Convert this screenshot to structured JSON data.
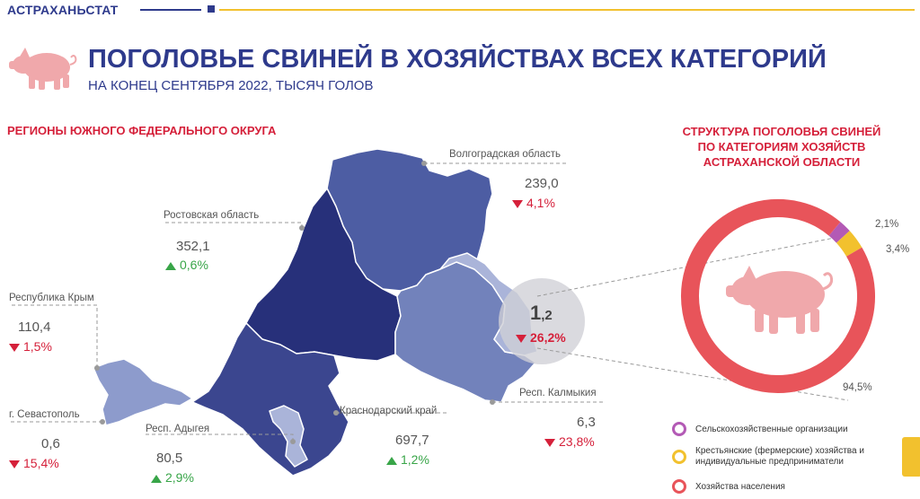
{
  "header": {
    "brand": "АСТРАХАНЬСТАТ"
  },
  "title": "ПОГОЛОВЬЕ СВИНЕЙ В ХОЗЯЙСТВАХ ВСЕХ КАТЕГОРИЙ",
  "subtitle": "НА КОНЕЦ СЕНТЯБРЯ 2022, ТЫСЯЧ ГОЛОВ",
  "left_section_title": "РЕГИОНЫ ЮЖНОГО ФЕДЕРАЛЬНОГО ОКРУГА",
  "right_section_title": "СТРУКТУРА ПОГОЛОВЬЯ СВИНЕЙ\nПО КАТЕГОРИЯМ ХОЗЯЙСТВ\nАСТРАХАНСКОЙ ОБЛАСТИ",
  "regions": {
    "volgograd": {
      "name": "Волгоградская область",
      "value": "239,0",
      "change": "4,1%",
      "direction": "down"
    },
    "rostov": {
      "name": "Ростовская область",
      "value": "352,1",
      "change": "0,6%",
      "direction": "up"
    },
    "crimea": {
      "name": "Республика Крым",
      "value": "110,4",
      "change": "1,5%",
      "direction": "down"
    },
    "sevastopol": {
      "name": "г. Севастополь",
      "value": "0,6",
      "change": "15,4%",
      "direction": "down"
    },
    "adygea": {
      "name": "Респ. Адыгея",
      "value": "80,5",
      "change": "2,9%",
      "direction": "up"
    },
    "krasnodar": {
      "name": "Краснодарский край",
      "value": "697,7",
      "change": "1,2%",
      "direction": "up"
    },
    "kalmykia": {
      "name": "Респ. Калмыкия",
      "value": "6,3",
      "change": "23,8%",
      "direction": "down"
    },
    "astrakhan": {
      "value_main": "1",
      "value_dec": ",2",
      "change": "26,2%",
      "direction": "down"
    }
  },
  "donut": {
    "segments": [
      {
        "label": "Сельскохозяйственные организации",
        "percent": 2.1,
        "text": "2,1%",
        "color": "#b35ab5"
      },
      {
        "label": "Крестьянские (фермерские) хозяйства и индивидуальные предприниматели",
        "percent": 3.4,
        "text": "3,4%",
        "color": "#f2c12e"
      },
      {
        "label": "Хозяйства населения",
        "percent": 94.5,
        "text": "94,5%",
        "color": "#e8545a"
      }
    ]
  },
  "colors": {
    "primary": "#2e3a8c",
    "accent_red": "#d5203a",
    "accent_yellow": "#f2c12e",
    "up_green": "#38a548"
  }
}
